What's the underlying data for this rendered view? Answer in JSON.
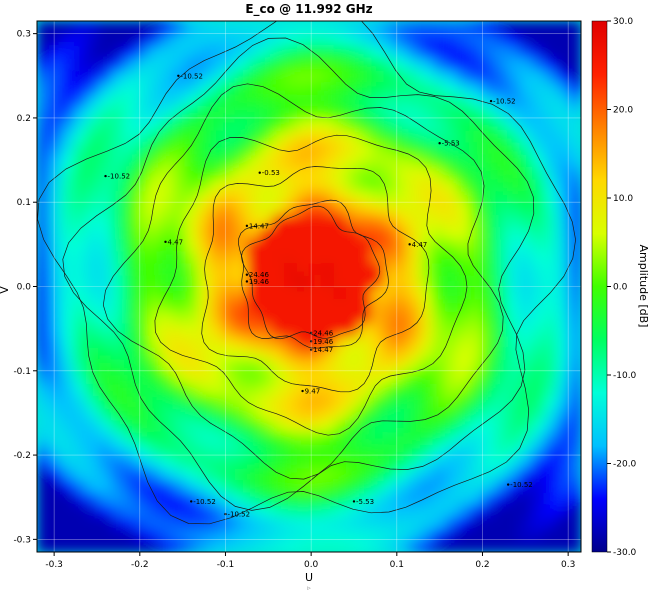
{
  "chart_data": {
    "type": "heatmap",
    "title": "E_co @ 11.992 GHz",
    "xlabel": "U",
    "ylabel": "V",
    "colorbar_label": "Amplitude [dB]",
    "xlim": [
      -0.32,
      0.315
    ],
    "ylim": [
      -0.315,
      0.315
    ],
    "x_ticks": [
      -0.3,
      -0.2,
      -0.1,
      0.0,
      0.1,
      0.2,
      0.3
    ],
    "x_tick_labels": [
      "-0.3",
      "-0.2",
      "-0.1",
      "0.0",
      "0.1",
      "0.2",
      "0.3"
    ],
    "y_ticks": [
      -0.3,
      -0.2,
      -0.1,
      0.0,
      0.1,
      0.2,
      0.3
    ],
    "y_tick_labels": [
      "-0.3",
      "-0.2",
      "-0.1",
      "0.0",
      "0.1",
      "0.2",
      "0.3"
    ],
    "colorbar_range": [
      -30,
      30
    ],
    "colorbar_ticks": [
      -30,
      -20,
      -10,
      0,
      10,
      20,
      30
    ],
    "colorbar_tick_labels": [
      "-30.0",
      "-20.0",
      "-10.0",
      "0.0",
      "10.0",
      "20.0",
      "30.0"
    ],
    "colormap": [
      "#00008b",
      "#0000ff",
      "#00c0ff",
      "#00ffd8",
      "#00ff60",
      "#40ff00",
      "#d8ff00",
      "#ffd800",
      "#ff8000",
      "#ff2000",
      "#e00000"
    ],
    "grid": true,
    "contour_levels": [
      -10.52,
      -5.53,
      -0.53,
      4.47,
      9.47,
      14.47,
      19.46,
      24.46
    ],
    "contour_labels": [
      {
        "u": -0.24,
        "v": 0.131,
        "text": "-10.52"
      },
      {
        "u": -0.155,
        "v": 0.25,
        "text": "-10.52"
      },
      {
        "u": -0.14,
        "v": -0.255,
        "text": "-10.52"
      },
      {
        "u": 0.23,
        "v": -0.235,
        "text": "-10.52"
      },
      {
        "u": -0.17,
        "v": 0.053,
        "text": "4.47"
      },
      {
        "u": -0.075,
        "v": 0.072,
        "text": "14.47"
      },
      {
        "u": 0.115,
        "v": 0.05,
        "text": "4.47"
      },
      {
        "u": -0.01,
        "v": -0.124,
        "text": "9.47"
      },
      {
        "u": 0.0,
        "v": -0.055,
        "text": "24.46"
      },
      {
        "u": 0.0,
        "v": -0.065,
        "text": "19.46"
      },
      {
        "u": 0.0,
        "v": -0.075,
        "text": "14.47"
      },
      {
        "u": -0.075,
        "v": 0.014,
        "text": "24.46"
      },
      {
        "u": -0.075,
        "v": 0.006,
        "text": "19.46"
      },
      {
        "u": -0.06,
        "v": 0.135,
        "text": "-0.53"
      },
      {
        "u": 0.15,
        "v": 0.17,
        "text": "-5.53"
      },
      {
        "u": -0.1,
        "v": -0.27,
        "text": "-10.52"
      },
      {
        "u": 0.05,
        "v": -0.255,
        "text": "-5.53"
      },
      {
        "u": 0.21,
        "v": 0.22,
        "text": "-10.52"
      }
    ]
  }
}
